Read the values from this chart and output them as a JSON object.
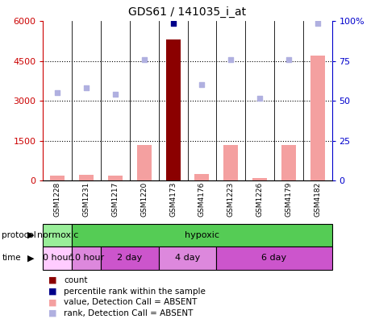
{
  "title": "GDS61 / 141035_i_at",
  "samples": [
    "GSM1228",
    "GSM1231",
    "GSM1217",
    "GSM1220",
    "GSM4173",
    "GSM4176",
    "GSM1223",
    "GSM1226",
    "GSM4179",
    "GSM4182"
  ],
  "bar_values": [
    200,
    220,
    200,
    1350,
    5300,
    250,
    1350,
    100,
    1350,
    4700
  ],
  "bar_colors_main": [
    "#f4a0a0",
    "#f4a0a0",
    "#f4a0a0",
    "#f4a0a0",
    "#8b0000",
    "#f4a0a0",
    "#f4a0a0",
    "#f4a0a0",
    "#f4a0a0",
    "#f4a0a0"
  ],
  "rank_values": [
    3300,
    3500,
    3250,
    4550,
    5900,
    3600,
    4550,
    3100,
    4550,
    5900
  ],
  "rank_colors": [
    "#b0b0e0",
    "#b0b0e0",
    "#b0b0e0",
    "#b0b0e0",
    "#00008b",
    "#b0b0e0",
    "#b0b0e0",
    "#b0b0e0",
    "#b0b0e0",
    "#b0b0e0"
  ],
  "ylim_left": [
    0,
    6000
  ],
  "ylim_right": [
    0,
    100
  ],
  "yticks_left": [
    0,
    1500,
    3000,
    4500,
    6000
  ],
  "yticks_right": [
    0,
    25,
    50,
    75,
    100
  ],
  "ytick_labels_left": [
    "0",
    "1500",
    "3000",
    "4500",
    "6000"
  ],
  "ytick_labels_right": [
    "0",
    "25",
    "50",
    "75",
    "100%"
  ],
  "left_axis_color": "#cc0000",
  "right_axis_color": "#0000cc",
  "protocol_groups": [
    {
      "label": "normoxic",
      "start": 0,
      "end": 1,
      "color": "#99ee99"
    },
    {
      "label": "hypoxic",
      "start": 1,
      "end": 10,
      "color": "#55cc55"
    }
  ],
  "time_groups": [
    {
      "label": "0 hour",
      "start": 0,
      "end": 1,
      "color": "#ffccff"
    },
    {
      "label": "10 hour",
      "start": 1,
      "end": 2,
      "color": "#dd88dd"
    },
    {
      "label": "2 day",
      "start": 2,
      "end": 4,
      "color": "#cc55cc"
    },
    {
      "label": "4 day",
      "start": 4,
      "end": 6,
      "color": "#dd88dd"
    },
    {
      "label": "6 day",
      "start": 6,
      "end": 10,
      "color": "#cc55cc"
    }
  ],
  "legend_items": [
    {
      "label": "count",
      "color": "#8b0000"
    },
    {
      "label": "percentile rank within the sample",
      "color": "#00008b"
    },
    {
      "label": "value, Detection Call = ABSENT",
      "color": "#f4a0a0"
    },
    {
      "label": "rank, Detection Call = ABSENT",
      "color": "#b0b0e0"
    }
  ],
  "bg_color": "#ffffff",
  "plot_bg": "#ffffff"
}
